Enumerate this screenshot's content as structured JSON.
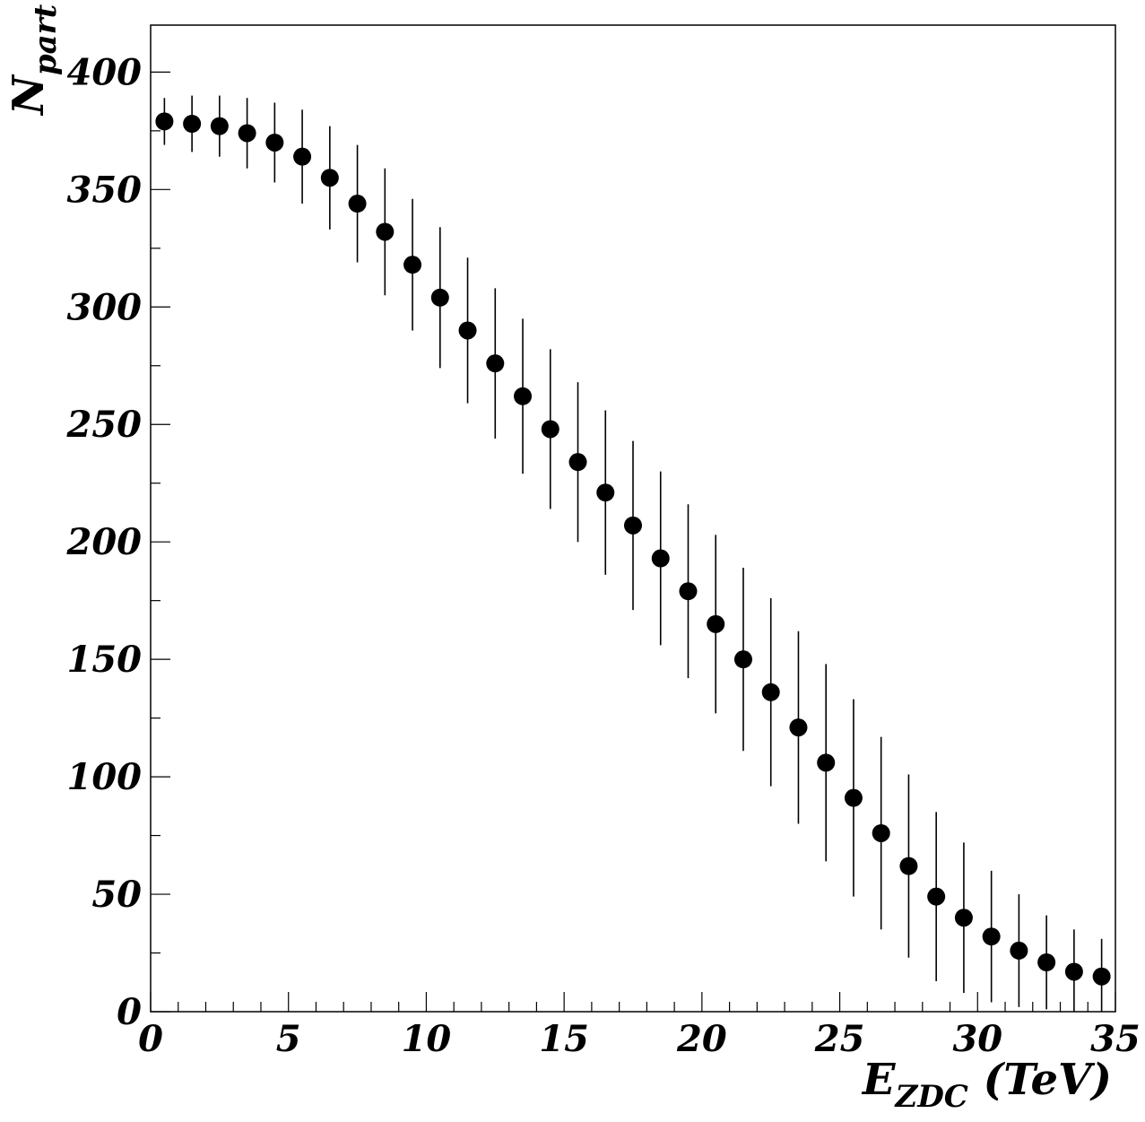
{
  "chart_data": {
    "type": "scatter",
    "title": "",
    "xlabel": {
      "main": "E",
      "sub": "ZDC",
      "unit": " (TeV)"
    },
    "ylabel": {
      "main": "N",
      "sub": "part"
    },
    "xlim": [
      0,
      35
    ],
    "ylim": [
      0,
      420
    ],
    "grid": false,
    "x_ticks": [
      0,
      5,
      10,
      15,
      20,
      25,
      30,
      35
    ],
    "y_ticks": [
      0,
      50,
      100,
      150,
      200,
      250,
      300,
      350,
      400
    ],
    "series": [
      {
        "marker": "filled-circle",
        "color": "#000000",
        "x": [
          0.5,
          1.5,
          2.5,
          3.5,
          4.5,
          5.5,
          6.5,
          7.5,
          8.5,
          9.5,
          10.5,
          11.5,
          12.5,
          13.5,
          14.5,
          15.5,
          16.5,
          17.5,
          18.5,
          19.5,
          20.5,
          21.5,
          22.5,
          23.5,
          24.5,
          25.5,
          26.5,
          27.5,
          28.5,
          29.5,
          30.5,
          31.5,
          32.5,
          33.5,
          34.5
        ],
        "y": [
          379,
          378,
          377,
          374,
          370,
          364,
          355,
          344,
          332,
          318,
          304,
          290,
          276,
          262,
          248,
          234,
          221,
          207,
          193,
          179,
          165,
          150,
          136,
          121,
          106,
          91,
          76,
          62,
          49,
          40,
          32,
          26,
          21,
          17,
          15
        ],
        "err": [
          10,
          12,
          13,
          15,
          17,
          20,
          22,
          25,
          27,
          28,
          30,
          31,
          32,
          33,
          34,
          34,
          35,
          36,
          37,
          37,
          38,
          39,
          40,
          41,
          42,
          42,
          41,
          39,
          36,
          32,
          28,
          24,
          20,
          18,
          16
        ]
      }
    ]
  }
}
